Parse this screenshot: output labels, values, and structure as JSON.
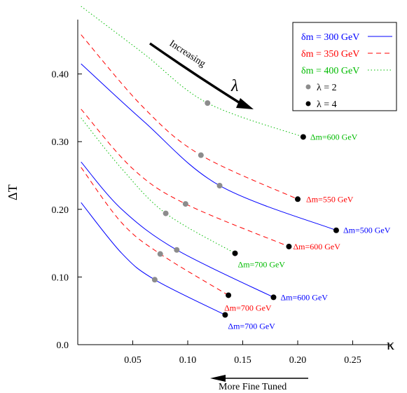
{
  "chart_data": {
    "type": "line",
    "title": "",
    "xlabel": "κ",
    "ylabel": "ΔT",
    "xlim": [
      0.0,
      0.28
    ],
    "ylim": [
      0.0,
      0.47
    ],
    "x_ticks": [
      {
        "value": 0.05,
        "label": "0.05"
      },
      {
        "value": 0.1,
        "label": "0.10"
      },
      {
        "value": 0.15,
        "label": "0.15"
      },
      {
        "value": 0.2,
        "label": "0.20"
      },
      {
        "value": 0.25,
        "label": "0.25"
      }
    ],
    "y_ticks": [
      {
        "value": 0.0,
        "label": "0.0"
      },
      {
        "value": 0.1,
        "label": "0.10"
      },
      {
        "value": 0.2,
        "label": "0.20"
      },
      {
        "value": 0.3,
        "label": "0.30"
      },
      {
        "value": 0.4,
        "label": "0.40"
      }
    ],
    "grid": false,
    "legend_position": "top-right",
    "legend": [
      {
        "label": "δm = 300 GeV",
        "kind": "line",
        "style": "solid",
        "color": "#0000ff"
      },
      {
        "label": "δm = 350 GeV",
        "kind": "line",
        "style": "dashed",
        "color": "#ff0000"
      },
      {
        "label": "δm = 400 GeV",
        "kind": "line",
        "style": "dotted",
        "color": "#00bb00"
      },
      {
        "label": "λ = 2",
        "kind": "marker",
        "color": "#8c8c8c"
      },
      {
        "label": "λ = 4",
        "kind": "marker",
        "color": "#000000"
      }
    ],
    "series": [
      {
        "group": "300",
        "style": "solid",
        "color": "#0000ff",
        "x": [
          0.003,
          0.06,
          0.129,
          0.235
        ],
        "y": [
          0.415,
          0.33,
          0.235,
          0.169
        ],
        "mid_point": [
          0.129,
          0.235
        ],
        "end_point": [
          0.235,
          0.169
        ],
        "end_label": "Δm=500 GeV"
      },
      {
        "group": "350",
        "style": "dashed",
        "color": "#ff0000",
        "x": [
          0.003,
          0.06,
          0.112,
          0.2
        ],
        "y": [
          0.458,
          0.35,
          0.28,
          0.215
        ],
        "mid_point": [
          0.112,
          0.28
        ],
        "end_point": [
          0.2,
          0.215
        ],
        "end_label": "Δm=550 GeV"
      },
      {
        "group": "400",
        "style": "dotted",
        "color": "#00bb00",
        "x": [
          0.003,
          0.06,
          0.118,
          0.205
        ],
        "y": [
          0.5,
          0.43,
          0.357,
          0.307
        ],
        "mid_point": [
          0.118,
          0.357
        ],
        "end_point": [
          0.205,
          0.307
        ],
        "end_label": "Δm=600 GeV"
      },
      {
        "group": "300",
        "style": "solid",
        "color": "#0000ff",
        "x": [
          0.003,
          0.04,
          0.09,
          0.178
        ],
        "y": [
          0.27,
          0.2,
          0.14,
          0.07
        ],
        "mid_point": [
          0.09,
          0.14
        ],
        "end_point": [
          0.178,
          0.07
        ],
        "end_label": "Δm=600 GeV"
      },
      {
        "group": "350",
        "style": "dashed",
        "color": "#ff0000",
        "x": [
          0.003,
          0.05,
          0.098,
          0.192
        ],
        "y": [
          0.348,
          0.26,
          0.208,
          0.145
        ],
        "mid_point": [
          0.098,
          0.208
        ],
        "end_point": [
          0.192,
          0.145
        ],
        "end_label": "Δm=600 GeV"
      },
      {
        "group": "400",
        "style": "dotted",
        "color": "#00bb00",
        "x": [
          0.003,
          0.04,
          0.08,
          0.143
        ],
        "y": [
          0.335,
          0.26,
          0.194,
          0.135
        ],
        "mid_point": [
          0.08,
          0.194
        ],
        "end_point": [
          0.143,
          0.135
        ],
        "end_label": "Δm=700 GeV"
      },
      {
        "group": "300",
        "style": "solid",
        "color": "#0000ff",
        "x": [
          0.003,
          0.04,
          0.07,
          0.134
        ],
        "y": [
          0.21,
          0.135,
          0.096,
          0.044
        ],
        "mid_point": [
          0.07,
          0.096
        ],
        "end_point": [
          0.134,
          0.044
        ],
        "end_label": "Δm=700 GeV"
      },
      {
        "group": "350",
        "style": "dashed",
        "color": "#ff0000",
        "x": [
          0.003,
          0.04,
          0.075,
          0.137
        ],
        "y": [
          0.262,
          0.18,
          0.134,
          0.073
        ],
        "mid_point": [
          0.075,
          0.134
        ],
        "end_point": [
          0.137,
          0.073
        ],
        "end_label": "Δm=700 GeV"
      }
    ],
    "annotations": {
      "increasing_text": "Increasing",
      "lambda_text": "λ",
      "fine_tuned_text": "More Fine Tuned"
    }
  }
}
